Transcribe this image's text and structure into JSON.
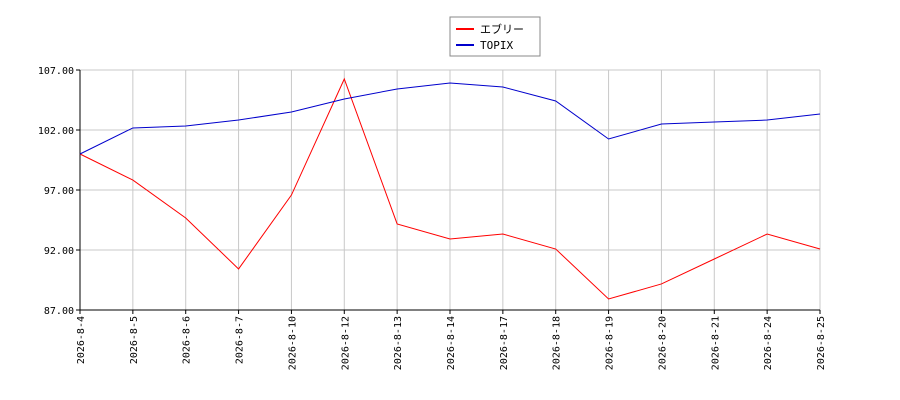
{
  "chart_data": {
    "type": "line",
    "categories": [
      "2026-8-4",
      "2026-8-5",
      "2026-8-6",
      "2026-8-7",
      "2026-8-10",
      "2026-8-12",
      "2026-8-13",
      "2026-8-14",
      "2026-8-17",
      "2026-8-18",
      "2026-8-19",
      "2026-8-20",
      "2026-8-21",
      "2026-8-24",
      "2026-8-25"
    ],
    "series": [
      {
        "name": "エブリー",
        "color": "#ff0000",
        "values": [
          100.0,
          97.83,
          94.67,
          90.42,
          96.58,
          106.25,
          94.17,
          92.92,
          93.33,
          92.08,
          87.92,
          89.17,
          91.25,
          93.33,
          92.08
        ]
      },
      {
        "name": "TOPIX",
        "color": "#0000cc",
        "values": [
          100.0,
          102.17,
          102.33,
          102.83,
          103.5,
          104.58,
          105.42,
          105.92,
          105.58,
          104.42,
          101.25,
          102.5,
          102.67,
          102.83,
          103.33
        ]
      }
    ],
    "ylim": [
      87,
      107
    ],
    "yticks": [
      {
        "value": 87,
        "label": "87.00"
      },
      {
        "value": 92,
        "label": "92.00"
      },
      {
        "value": 97,
        "label": "97.00"
      },
      {
        "value": 102,
        "label": "102.00"
      },
      {
        "value": 107,
        "label": "107.00"
      }
    ],
    "grid": true
  }
}
